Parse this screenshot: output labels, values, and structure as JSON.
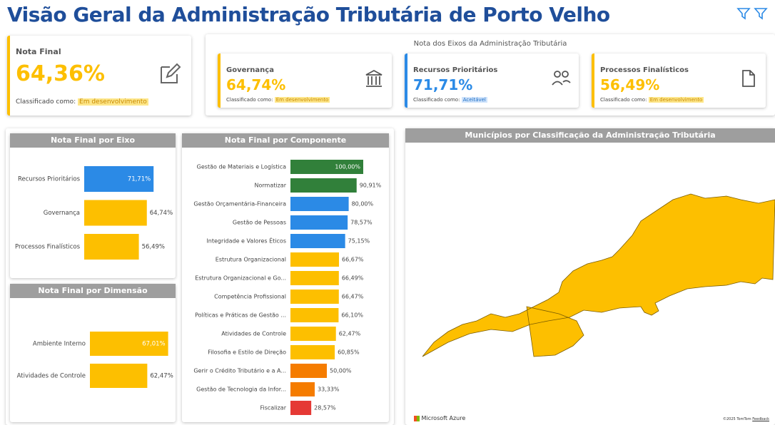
{
  "title": "Visão Geral da Administração Tributária de Porto Velho",
  "nota_final": {
    "label": "Nota Final",
    "value": "64,36%",
    "prefix": "Classificado como:",
    "classification": "Em desenvolvimento"
  },
  "eixos_title": "Nota dos Eixos da Administração Tributária",
  "eixos": [
    {
      "label": "Governança",
      "value": "64,74%",
      "prefix": "Classificado como:",
      "classification": "Em desenvolvimento"
    },
    {
      "label": "Recursos Prioritários",
      "value": "71,71%",
      "prefix": "Classificado como:",
      "classification": "Aceitável"
    },
    {
      "label": "Processos Finalísticos",
      "value": "56,49%",
      "prefix": "Classificado como:",
      "classification": "Em desenvolvimento"
    }
  ],
  "chart_data": [
    {
      "type": "bar",
      "orientation": "horizontal",
      "title": "Nota Final por Eixo",
      "categories": [
        "Recursos Prioritários",
        "Governança",
        "Processos Finalísticos"
      ],
      "values": [
        71.71,
        64.74,
        56.49
      ],
      "value_labels": [
        "71,71%",
        "64,74%",
        "56,49%"
      ],
      "colors": [
        "#2b8ae6",
        "#fdbf00",
        "#fdbf00"
      ],
      "xlim": [
        0,
        90
      ]
    },
    {
      "type": "bar",
      "orientation": "horizontal",
      "title": "Nota Final por Componente",
      "categories": [
        "Gestão de Materiais e Logística",
        "Normatizar",
        "Gestão Orçamentária-Financeira",
        "Gestão de Pessoas",
        "Integridade e Valores Éticos",
        "Estrutura Organizacional",
        "Estrutura Organizacional e Go...",
        "Competência Profissional",
        "Políticas e Práticas de Gestão ...",
        "Atividades de Controle",
        "Filosofia e Estilo de Direção",
        "Gerir o Crédito Tributário e a A...",
        "Gestão de Tecnologia da Infor...",
        "Fiscalizar"
      ],
      "values": [
        100,
        90.91,
        80,
        78.57,
        75.15,
        66.67,
        66.49,
        66.47,
        66.1,
        62.47,
        60.85,
        50,
        33.33,
        28.57
      ],
      "value_labels": [
        "100,00%",
        "90,91%",
        "80,00%",
        "78,57%",
        "75,15%",
        "66,67%",
        "66,49%",
        "66,47%",
        "66,10%",
        "62,47%",
        "60,85%",
        "50,00%",
        "33,33%",
        "28,57%"
      ],
      "colors": [
        "#31803a",
        "#31803a",
        "#2b8ae6",
        "#2b8ae6",
        "#2b8ae6",
        "#fdbf00",
        "#fdbf00",
        "#fdbf00",
        "#fdbf00",
        "#fdbf00",
        "#fdbf00",
        "#f57c00",
        "#f57c00",
        "#e53935"
      ],
      "xlim": [
        0,
        100
      ]
    },
    {
      "type": "bar",
      "orientation": "horizontal",
      "title": "Nota Final por Dimensão",
      "categories": [
        "Ambiente Interno",
        "Atividades de Controle"
      ],
      "values": [
        67.01,
        62.47
      ],
      "value_labels": [
        "67,01%",
        "62,47%"
      ],
      "colors": [
        "#fdbf00",
        "#fdbf00"
      ],
      "xlim": [
        50,
        68
      ]
    }
  ],
  "map": {
    "title": "Municípios por Classificação da Administração Tributária",
    "provider": "Microsoft Azure",
    "copyright": "©2025 TomTom",
    "feedback": "Feedback"
  }
}
